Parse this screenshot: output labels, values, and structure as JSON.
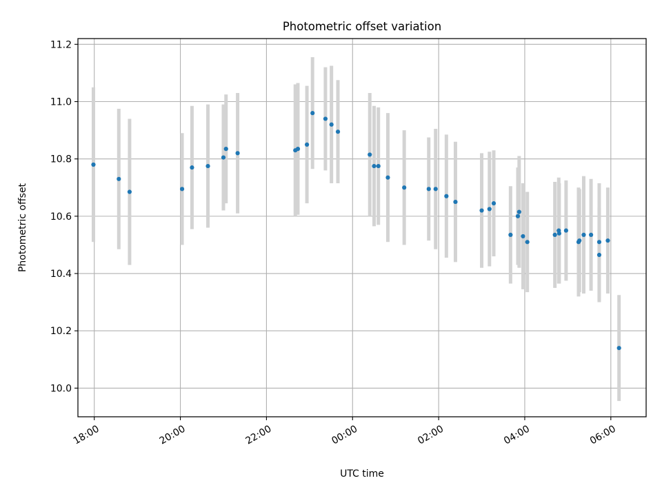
{
  "chart_data": {
    "type": "scatter",
    "title": "Photometric offset variation",
    "xlabel": "UTC time",
    "ylabel": "Photometric offset",
    "x_unit": "UTC clock time (hours; values past midnight exceed 24)",
    "xlim": [
      17.62,
      30.82
    ],
    "ylim": [
      9.9,
      11.22
    ],
    "x_ticks": [
      {
        "value": 18,
        "label": "18:00"
      },
      {
        "value": 20,
        "label": "20:00"
      },
      {
        "value": 22,
        "label": "22:00"
      },
      {
        "value": 24,
        "label": "00:00"
      },
      {
        "value": 26,
        "label": "02:00"
      },
      {
        "value": 28,
        "label": "04:00"
      },
      {
        "value": 30,
        "label": "06:00"
      }
    ],
    "y_ticks": [
      10.0,
      10.2,
      10.4,
      10.6,
      10.8,
      11.0,
      11.2
    ],
    "grid": true,
    "colors": {
      "points": "#1f77b4",
      "error_bars": "#d3d3d3",
      "grid": "#b0b0b0"
    },
    "series": [
      {
        "x": [
          17.98,
          18.57,
          18.82,
          20.04,
          20.27,
          20.64,
          21.0,
          21.06,
          21.33,
          22.67,
          22.73,
          22.94,
          23.07,
          23.37,
          23.51,
          23.66,
          24.4,
          24.5,
          24.6,
          24.82,
          25.2,
          25.77,
          25.93,
          26.18,
          26.39,
          27.0,
          27.18,
          27.28,
          27.67,
          27.84,
          27.87,
          27.96,
          28.06,
          28.7,
          28.79,
          28.8,
          28.96,
          29.25,
          29.27,
          29.37,
          29.54,
          29.73,
          29.73,
          29.93,
          30.19
        ],
        "y": [
          10.78,
          10.73,
          10.685,
          10.695,
          10.77,
          10.775,
          10.805,
          10.835,
          10.82,
          10.83,
          10.835,
          10.85,
          10.96,
          10.94,
          10.92,
          10.895,
          10.815,
          10.775,
          10.775,
          10.735,
          10.7,
          10.695,
          10.695,
          10.67,
          10.65,
          10.62,
          10.625,
          10.645,
          10.535,
          10.6,
          10.615,
          10.53,
          10.51,
          10.535,
          10.55,
          10.54,
          10.55,
          10.51,
          10.515,
          10.535,
          10.535,
          10.465,
          10.51,
          10.515,
          10.14
        ],
        "yerr": [
          0.27,
          0.245,
          0.255,
          0.195,
          0.215,
          0.215,
          0.185,
          0.19,
          0.21,
          0.23,
          0.23,
          0.205,
          0.195,
          0.18,
          0.205,
          0.18,
          0.215,
          0.21,
          0.205,
          0.225,
          0.2,
          0.18,
          0.21,
          0.215,
          0.21,
          0.2,
          0.2,
          0.185,
          0.17,
          0.17,
          0.195,
          0.185,
          0.175,
          0.185,
          0.185,
          0.175,
          0.175,
          0.19,
          0.18,
          0.205,
          0.195,
          0.165,
          0.205,
          0.185,
          0.185
        ]
      }
    ]
  }
}
